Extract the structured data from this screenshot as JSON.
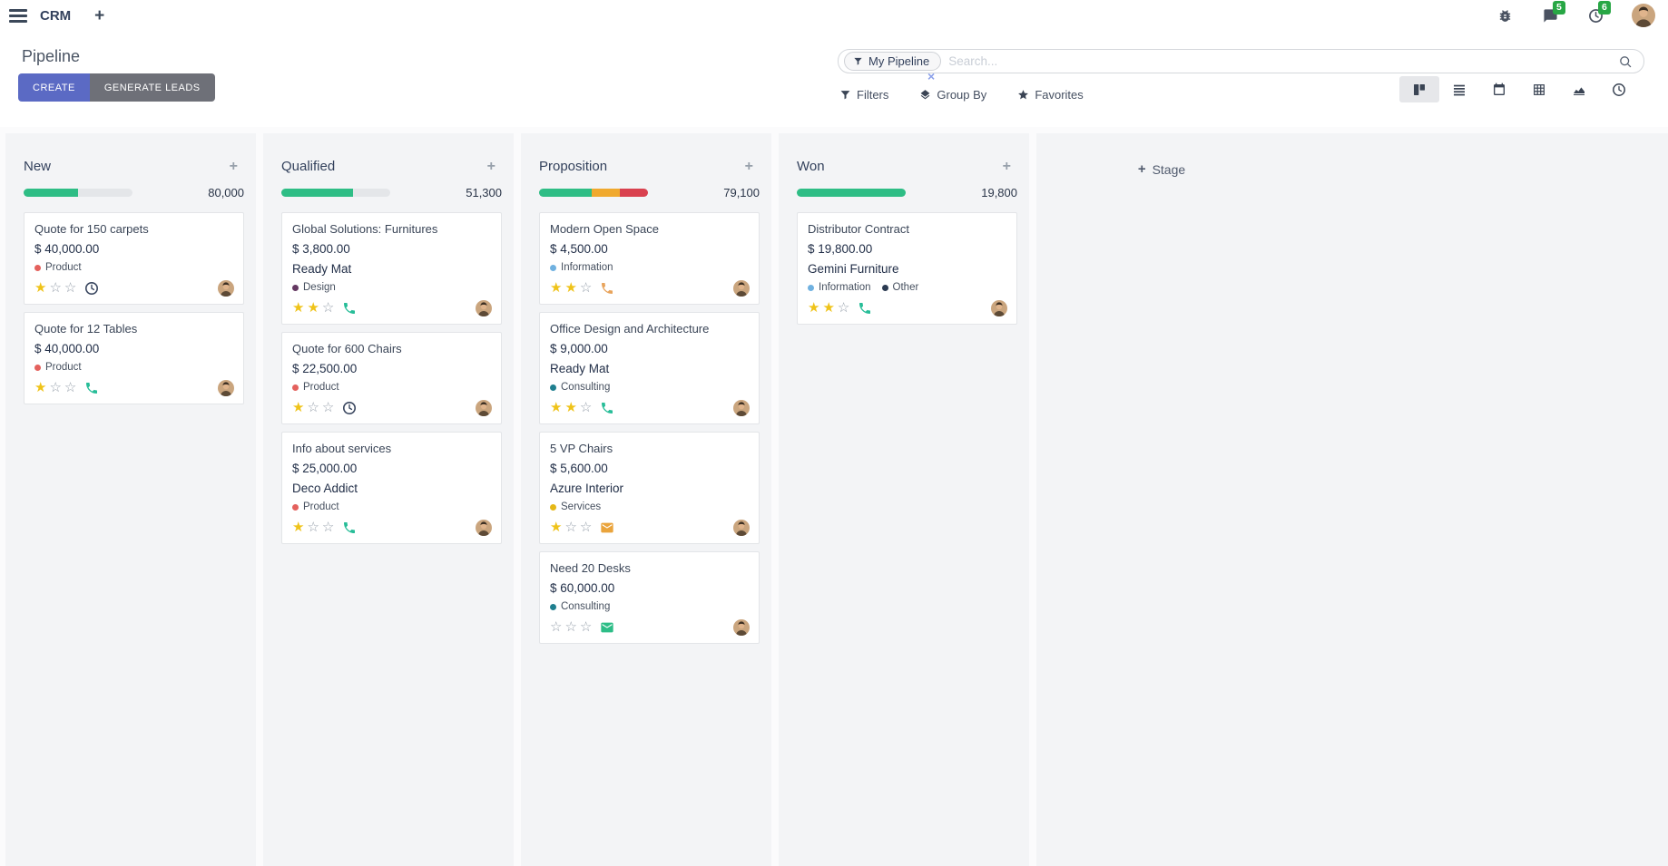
{
  "topbar": {
    "app_name": "CRM",
    "messages_badge": "5",
    "activities_badge": "6"
  },
  "control_panel": {
    "title": "Pipeline",
    "create_label": "CREATE",
    "generate_leads_label": "GENERATE LEADS",
    "filters_label": "Filters",
    "group_by_label": "Group By",
    "favorites_label": "Favorites",
    "search": {
      "facet_label": "My Pipeline",
      "placeholder": "Search..."
    }
  },
  "colors": {
    "primary_button": "#5b6ac4",
    "secondary_button": "#6e7078",
    "badge_green": "#28a745",
    "progress_success": "#2ebd85",
    "progress_warning": "#f0a92e",
    "progress_danger": "#d9414f",
    "star_filled": "#efc319"
  },
  "kanban": {
    "add_stage_label": "Stage",
    "columns": [
      {
        "name": "New",
        "total": "80,000",
        "progress": [
          {
            "color": "#2ebd85",
            "pct": 50
          }
        ],
        "cards": [
          {
            "title": "Quote for 150 carpets",
            "amount": "$ 40,000.00",
            "tags": [
              {
                "color": "#e4615d",
                "label": "Product"
              }
            ],
            "stars": 1,
            "activity": {
              "icon": "clock",
              "color": "#39465f"
            }
          },
          {
            "title": "Quote for 12 Tables",
            "amount": "$ 40,000.00",
            "tags": [
              {
                "color": "#e4615d",
                "label": "Product"
              }
            ],
            "stars": 1,
            "activity": {
              "icon": "phone",
              "color": "#27bd98"
            }
          }
        ]
      },
      {
        "name": "Qualified",
        "total": "51,300",
        "progress": [
          {
            "color": "#2ebd85",
            "pct": 66
          }
        ],
        "cards": [
          {
            "title": "Global Solutions: Furnitures",
            "amount": "$ 3,800.00",
            "partner": "Ready Mat",
            "tags": [
              {
                "color": "#653962",
                "label": "Design"
              }
            ],
            "stars": 2,
            "activity": {
              "icon": "phone",
              "color": "#27bd98"
            }
          },
          {
            "title": "Quote for 600 Chairs",
            "amount": "$ 22,500.00",
            "tags": [
              {
                "color": "#e4615d",
                "label": "Product"
              }
            ],
            "stars": 1,
            "activity": {
              "icon": "clock",
              "color": "#39465f"
            }
          },
          {
            "title": "Info about services",
            "amount": "$ 25,000.00",
            "partner": "Deco Addict",
            "tags": [
              {
                "color": "#e4615d",
                "label": "Product"
              }
            ],
            "stars": 1,
            "activity": {
              "icon": "phone",
              "color": "#27bd98"
            }
          }
        ]
      },
      {
        "name": "Proposition",
        "total": "79,100",
        "progress": [
          {
            "color": "#2ebd85",
            "pct": 48
          },
          {
            "color": "#f0a92e",
            "pct": 26
          },
          {
            "color": "#d9414f",
            "pct": 26
          }
        ],
        "cards": [
          {
            "title": "Modern Open Space",
            "amount": "$ 4,500.00",
            "tags": [
              {
                "color": "#70b1e0",
                "label": "Information"
              }
            ],
            "stars": 2,
            "activity": {
              "icon": "phone",
              "color": "#e8a45c"
            }
          },
          {
            "title": "Office Design and Architecture",
            "amount": "$ 9,000.00",
            "partner": "Ready Mat",
            "tags": [
              {
                "color": "#1f7f8f",
                "label": "Consulting"
              }
            ],
            "stars": 2,
            "activity": {
              "icon": "phone",
              "color": "#27bd98"
            }
          },
          {
            "title": "5 VP Chairs",
            "amount": "$ 5,600.00",
            "partner": "Azure Interior",
            "tags": [
              {
                "color": "#e5b817",
                "label": "Services"
              }
            ],
            "stars": 1,
            "activity": {
              "icon": "envelope",
              "color": "#eaa43c"
            }
          },
          {
            "title": "Need 20 Desks",
            "amount": "$ 60,000.00",
            "tags": [
              {
                "color": "#1f7f8f",
                "label": "Consulting"
              }
            ],
            "stars": 0,
            "activity": {
              "icon": "envelope",
              "color": "#2dbd87"
            }
          }
        ]
      },
      {
        "name": "Won",
        "total": "19,800",
        "progress": [
          {
            "color": "#2ebd85",
            "pct": 100
          }
        ],
        "cards": [
          {
            "title": "Distributor Contract",
            "amount": "$ 19,800.00",
            "partner": "Gemini Furniture",
            "tags": [
              {
                "color": "#70b1e0",
                "label": "Information"
              },
              {
                "color": "#2c3b52",
                "label": "Other"
              }
            ],
            "stars": 2,
            "activity": {
              "icon": "phone",
              "color": "#27bd98"
            }
          }
        ]
      }
    ]
  }
}
